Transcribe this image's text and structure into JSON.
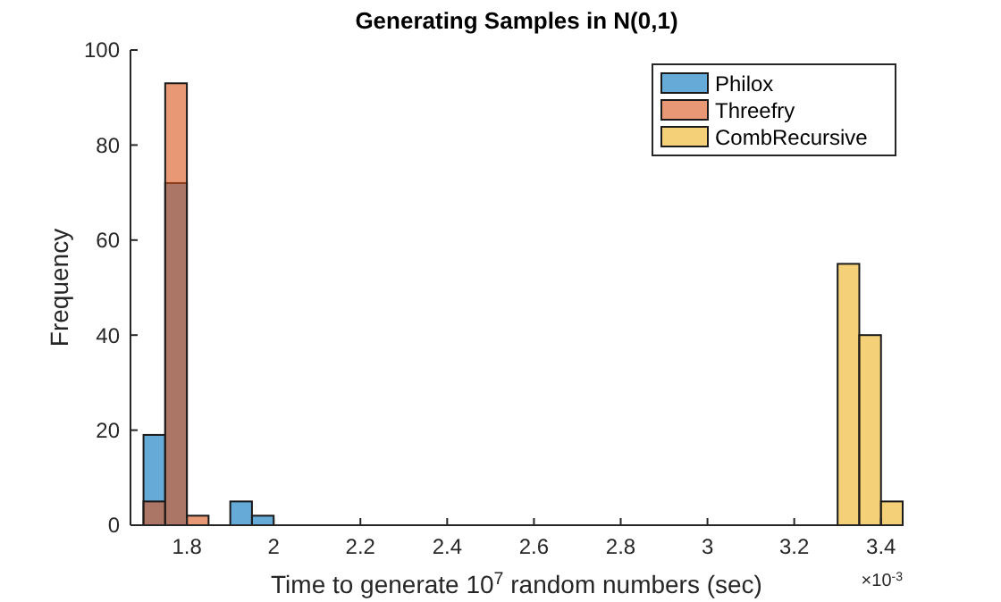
{
  "chart_data": {
    "type": "histogram",
    "title": "Generating Samples in N(0,1)",
    "xlabel": "Time to generate 10$^{7}$ random numbers (sec)",
    "ylabel": "Frequency",
    "annotations": [
      "×10$^{-3}$"
    ],
    "bins": [
      1.7,
      1.75,
      1.8,
      1.85,
      1.9,
      1.95,
      2.0,
      2.05,
      2.1,
      2.15,
      2.2,
      2.25,
      2.3,
      2.35,
      2.4,
      2.45,
      2.5,
      2.55,
      2.6,
      2.65,
      2.7,
      2.75,
      2.8,
      2.85,
      2.9,
      2.95,
      3.0,
      3.05,
      3.1,
      3.15,
      3.2,
      3.25,
      3.3,
      3.35,
      3.4,
      3.45
    ],
    "series": [
      {
        "name": "Philox",
        "color": "#0072bd",
        "values": [
          19,
          72,
          0,
          0,
          5,
          2,
          0,
          0,
          0,
          0,
          0,
          0,
          0,
          0,
          0,
          0,
          0,
          0,
          0,
          0,
          0,
          0,
          0,
          0,
          0,
          0,
          0,
          0,
          0,
          0,
          0,
          0,
          0,
          0,
          0
        ]
      },
      {
        "name": "Threefry",
        "color": "#d95319",
        "values": [
          5,
          93,
          2,
          0,
          0,
          0,
          0,
          0,
          0,
          0,
          0,
          0,
          0,
          0,
          0,
          0,
          0,
          0,
          0,
          0,
          0,
          0,
          0,
          0,
          0,
          0,
          0,
          0,
          0,
          0,
          0,
          0,
          0,
          0,
          0
        ]
      },
      {
        "name": "CombRecursive",
        "color": "#edb120",
        "values": [
          0,
          0,
          0,
          0,
          0,
          0,
          0,
          0,
          0,
          0,
          0,
          0,
          0,
          0,
          0,
          0,
          0,
          0,
          0,
          0,
          0,
          0,
          0,
          0,
          0,
          0,
          0,
          0,
          0,
          0,
          0,
          0,
          55,
          40,
          5
        ]
      }
    ],
    "xlim": [
      1.67,
      3.45
    ],
    "xticks": [
      1.8,
      2,
      2.2,
      2.4,
      2.6,
      2.8,
      3,
      3.2,
      3.4
    ],
    "ylim": [
      0,
      100
    ],
    "yticks": [
      0,
      20,
      40,
      60,
      80,
      100
    ],
    "legend": "top right"
  }
}
